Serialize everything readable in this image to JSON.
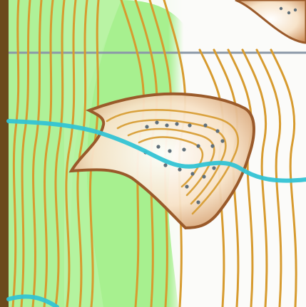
{
  "map": {
    "colors": {
      "frame": "#6b4a1b",
      "green": "#a7f08f",
      "green_light": "#c6f6b4",
      "white": "#fbfbf9",
      "contour": "#d79b2f",
      "water": "#33c3d4",
      "grid": "#8b98a8",
      "cliff": "#9a5a2a",
      "rock_dot": "#5f6f7a",
      "ridge_fill": "#f2d1aa"
    },
    "icons": [
      "contour-line",
      "stream-line",
      "cliff-outline",
      "rock-dot"
    ]
  }
}
